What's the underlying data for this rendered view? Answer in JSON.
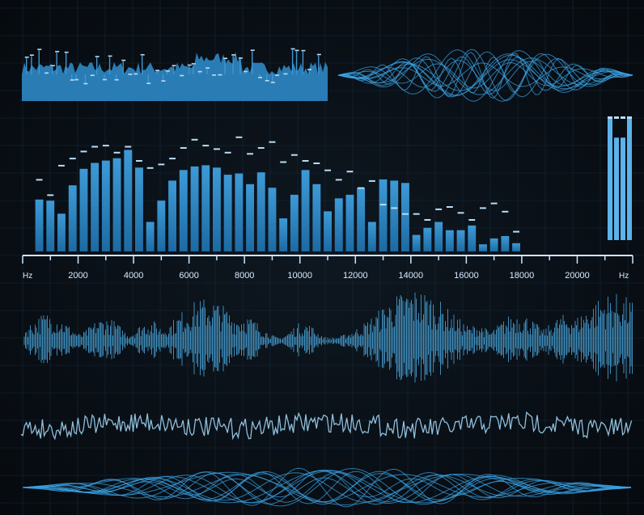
{
  "colors": {
    "background": "#0a0f16",
    "grid": "#1c3346",
    "bar": "#2c86c4",
    "bar_light": "#5bb3ea",
    "peak": "#b9dcf5",
    "wave": "#4fb4ee",
    "wave_core": "#e8f7ff",
    "noise": "#9fd3f2",
    "axis": "#cfe6fb"
  },
  "chart_data": [
    {
      "type": "bar",
      "xlabel": "Hz",
      "xlabel_right": "Hz",
      "xlim": [
        0,
        22000
      ],
      "x_ticks": [
        2000,
        4000,
        6000,
        8000,
        10000,
        12000,
        14000,
        16000,
        18000,
        20000
      ],
      "ylim": [
        0,
        100
      ],
      "bin_width": 400,
      "x": [
        600,
        1000,
        1400,
        1800,
        2200,
        2600,
        3000,
        3400,
        3800,
        4200,
        4600,
        5000,
        5400,
        5800,
        6200,
        6600,
        7000,
        7400,
        7800,
        8200,
        8600,
        9000,
        9400,
        9800,
        10200,
        10600,
        11000,
        11400,
        11800,
        12200,
        12600,
        13000,
        13400,
        13800,
        14200,
        14600,
        15000,
        15400,
        15800,
        16200,
        16600,
        17000,
        17400,
        17800
      ],
      "values": [
        44,
        43,
        32,
        56,
        70,
        75,
        77,
        79,
        86,
        71,
        25,
        43,
        60,
        69,
        72,
        73,
        71,
        65,
        66,
        57,
        67,
        54,
        28,
        48,
        69,
        57,
        34,
        45,
        48,
        54,
        25,
        61,
        60,
        58,
        14,
        20,
        25,
        18,
        18,
        22,
        6,
        11,
        13,
        7
      ],
      "peaks": [
        60,
        47,
        72,
        78,
        84,
        88,
        89,
        83,
        88,
        76,
        70,
        73,
        78,
        87,
        94,
        89,
        86,
        83,
        96,
        82,
        87,
        92,
        75,
        81,
        76,
        74,
        68,
        60,
        67,
        53,
        59,
        39,
        36,
        31,
        31,
        26,
        35,
        37,
        32,
        26,
        36,
        40,
        33,
        16
      ]
    },
    {
      "type": "bar",
      "xlabel": "",
      "ylim": [
        0,
        100
      ],
      "values": [
        100,
        84,
        84,
        100
      ],
      "peaks": [
        100,
        100,
        100,
        100
      ]
    }
  ]
}
